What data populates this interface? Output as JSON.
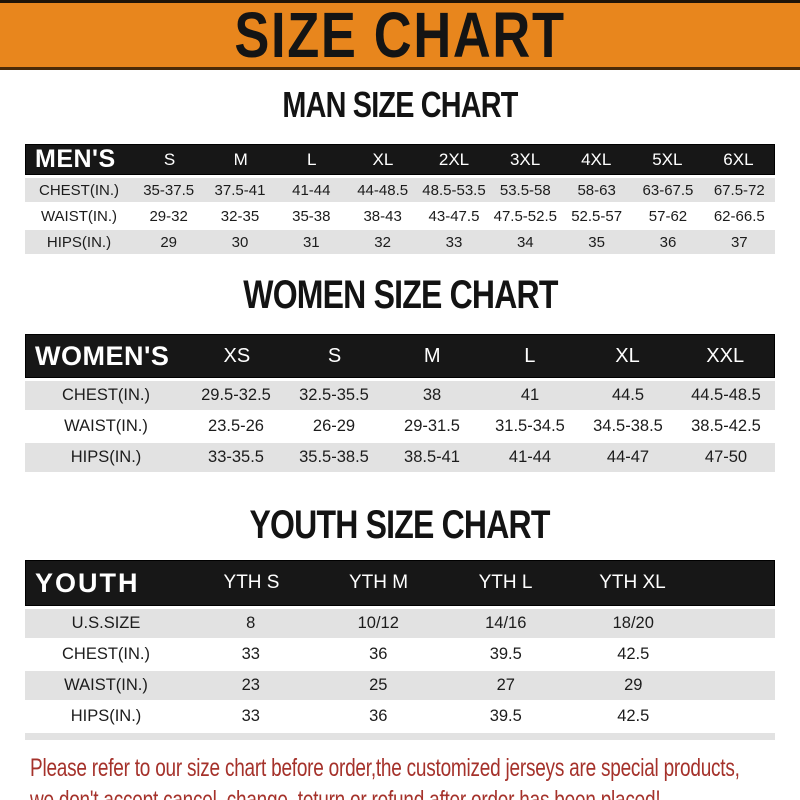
{
  "banner": {
    "title": "SIZE CHART"
  },
  "colors": {
    "banner_orange": "#E8861D",
    "bar_black": "#171717",
    "row_gray": "#E2E2E2",
    "note_red": "#A5322B"
  },
  "sections": {
    "men": {
      "title": "MAN SIZE CHART",
      "table": {
        "header_label": "MEN'S",
        "columns": [
          "S",
          "M",
          "L",
          "XL",
          "2XL",
          "3XL",
          "4XL",
          "5XL",
          "6XL"
        ],
        "rows": [
          {
            "label": "CHEST(IN.)",
            "values": [
              "35-37.5",
              "37.5-41",
              "41-44",
              "44-48.5",
              "48.5-53.5",
              "53.5-58",
              "58-63",
              "63-67.5",
              "67.5-72"
            ]
          },
          {
            "label": "WAIST(IN.)",
            "values": [
              "29-32",
              "32-35",
              "35-38",
              "38-43",
              "43-47.5",
              "47.5-52.5",
              "52.5-57",
              "57-62",
              "62-66.5"
            ]
          },
          {
            "label": "HIPS(IN.)",
            "values": [
              "29",
              "30",
              "31",
              "32",
              "33",
              "34",
              "35",
              "36",
              "37"
            ]
          }
        ]
      }
    },
    "women": {
      "title": "WOMEN SIZE CHART",
      "table": {
        "header_label": "WOMEN'S",
        "columns": [
          "XS",
          "S",
          "M",
          "L",
          "XL",
          "XXL"
        ],
        "rows": [
          {
            "label": "CHEST(IN.)",
            "values": [
              "29.5-32.5",
              "32.5-35.5",
              "38",
              "41",
              "44.5",
              "44.5-48.5"
            ]
          },
          {
            "label": "WAIST(IN.)",
            "values": [
              "23.5-26",
              "26-29",
              "29-31.5",
              "31.5-34.5",
              "34.5-38.5",
              "38.5-42.5"
            ]
          },
          {
            "label": "HIPS(IN.)",
            "values": [
              "33-35.5",
              "35.5-38.5",
              "38.5-41",
              "41-44",
              "44-47",
              "47-50"
            ]
          }
        ]
      }
    },
    "youth": {
      "title": "YOUTH SIZE CHART",
      "table": {
        "header_label": "YOUTH",
        "columns": [
          "YTH S",
          "YTH M",
          "YTH L",
          "YTH XL"
        ],
        "rows": [
          {
            "label": "U.S.SIZE",
            "values": [
              "8",
              "10/12",
              "14/16",
              "18/20"
            ]
          },
          {
            "label": "CHEST(IN.)",
            "values": [
              "33",
              "36",
              "39.5",
              "42.5"
            ]
          },
          {
            "label": "WAIST(IN.)",
            "values": [
              "23",
              "25",
              "27",
              "29"
            ]
          },
          {
            "label": "HIPS(IN.)",
            "values": [
              "33",
              "36",
              "39.5",
              "42.5"
            ]
          }
        ]
      }
    }
  },
  "footer": {
    "line1": "Please refer to our size chart before order,the customized jerseys are special products,",
    "line2": "we don't accept cancel, change, teturn or refund after order has been placed!"
  }
}
